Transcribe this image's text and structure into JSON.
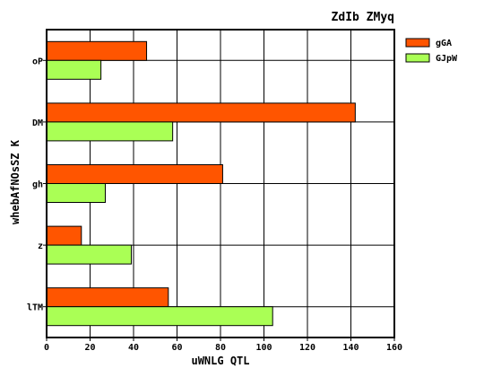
{
  "chart_data": {
    "type": "bar",
    "orientation": "horizontal",
    "title": "ZdIb ZMyq",
    "xlabel": "uWNLG QTL",
    "ylabel": "whebAfNOsSZ K",
    "categories": [
      "oP",
      "DM",
      "gh",
      "z",
      "lTM"
    ],
    "series": [
      {
        "name": "gGA",
        "color": "#ff5500",
        "values": [
          46,
          142,
          81,
          16,
          56
        ]
      },
      {
        "name": "GJpW",
        "color": "#aaff55",
        "values": [
          25,
          58,
          27,
          39,
          104
        ]
      }
    ],
    "xlim": [
      0,
      160
    ],
    "xticks": [
      0,
      20,
      40,
      60,
      80,
      100,
      120,
      140,
      160
    ],
    "grid": true,
    "legend_position": "top-right"
  }
}
